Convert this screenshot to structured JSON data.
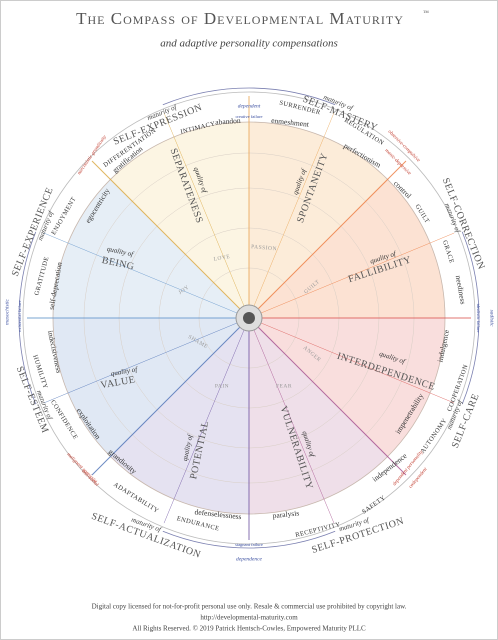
{
  "header": {
    "title": "The Compass of Developmental Maturity",
    "trademark": "™",
    "subtitle": "and adaptive personality compensations"
  },
  "poles": [
    {
      "pole": "dependent",
      "failure": "creative failure"
    },
    {
      "pole": "sadistic",
      "failure": "idealistic failure"
    },
    {
      "pole": "dependence",
      "failure": "stagnant failure"
    },
    {
      "pole": "masochistic",
      "failure": "existential failure"
    }
  ],
  "pathologies": [
    "narcissistic grandiosity",
    "obsessive-compulsive",
    "manic-depressive",
    "malignant narcissist",
    "anti-social",
    "dependent personality",
    "codependent"
  ],
  "maturities": [
    {
      "prefix": "maturity of",
      "name": "SELF-EXPRESSION"
    },
    {
      "prefix": "maturity of",
      "name": "SELF-MASTERY"
    },
    {
      "prefix": "maturity of",
      "name": "SELF-CORRECTION"
    },
    {
      "prefix": "maturity of",
      "name": "SELF-CARE"
    },
    {
      "prefix": "maturity of",
      "name": "SELF-PROTECTION"
    },
    {
      "prefix": "maturity of",
      "name": "SELF-ACTUALIZATION"
    },
    {
      "prefix": "maturity of",
      "name": "SELF-ESTEEM"
    },
    {
      "prefix": "maturity of",
      "name": "SELF-EXPERIENCE"
    }
  ],
  "virtues": [
    "INTIMACY",
    "SURRENDER",
    "REGULATION",
    "GUILT",
    "GRACE",
    "COOPERATION",
    "AUTONOMY",
    "SAFETY",
    "RECEPTIVITY",
    "ENDURANCE",
    "ADAPTABILITY",
    "CONFIDENCE",
    "HUMILITY",
    "GRATITUDE",
    "ENJOYMENT",
    "DIFFERENTIATION"
  ],
  "compensations": [
    "abandon",
    "enmeshment",
    "perfectionism",
    "control",
    "neediness",
    "indulgence",
    "impenetrability",
    "independence",
    "paralysis",
    "defenselessness",
    "grandiosity",
    "exploitation",
    "indecisiveness",
    "self-deprecation",
    "egocentricity",
    "gratification"
  ],
  "qualities": [
    {
      "prefix": "quality of",
      "name": "SEPARATENESS"
    },
    {
      "prefix": "quality of",
      "name": "SPONTANEITY"
    },
    {
      "prefix": "quality of",
      "name": "FALLIBILITY"
    },
    {
      "prefix": "quality of",
      "name": "INTERDEPENDENCE"
    },
    {
      "prefix": "quality of",
      "name": "VULNERABILITY"
    },
    {
      "prefix": "quality of",
      "name": "POTENTIAL"
    },
    {
      "prefix": "quality of",
      "name": "VALUE"
    },
    {
      "prefix": "quality of",
      "name": "BEING"
    }
  ],
  "emotions": [
    "LOVE",
    "PASSION",
    "GUILT",
    "ANGER",
    "FEAR",
    "PAIN",
    "SHAME",
    "JOY"
  ],
  "footer": [
    "Digital copy licensed for not-for-profit personal use only. Resale & commercial use prohibited by copyright law.",
    "http://developmental-maturity.com",
    "All Rights Reserved. © 2019 Patrick Hentsch-Cowles, Empowered Maturity PLLC"
  ]
}
